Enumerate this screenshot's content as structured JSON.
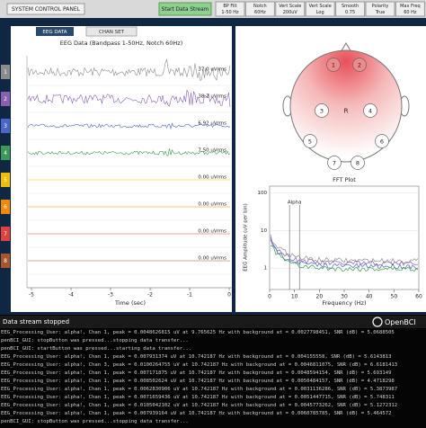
{
  "header": {
    "panel_button": "SYSTEM CONTROL PANEL",
    "stream_button": "Start Data Stream",
    "controls": [
      {
        "label": "BP Filt",
        "value": "1-50 Hz"
      },
      {
        "label": "Notch",
        "value": "60Hz"
      },
      {
        "label": "Vert Scale",
        "value": "200uV"
      },
      {
        "label": "Vert Scale",
        "value": "Log"
      },
      {
        "label": "Smooth",
        "value": "0.75"
      },
      {
        "label": "Polarity",
        "value": "True"
      },
      {
        "label": "Max Freq",
        "value": "60 Hz"
      }
    ]
  },
  "tabs": [
    "EEG DATA",
    "CHAN SET"
  ],
  "eeg": {
    "title": "EEG Data (Bandpass 1-50Hz, Notch 60Hz)",
    "channels": [
      {
        "number": 1,
        "color": "#8c8c8c",
        "rms": "37.0 uVrms"
      },
      {
        "number": 2,
        "color": "#8a5fb3",
        "rms": "38.2 uVrms"
      },
      {
        "number": 3,
        "color": "#4a66c8",
        "rms": "6.92 uVrms"
      },
      {
        "number": 4,
        "color": "#3d9a54",
        "rms": "7.50 uVrms"
      },
      {
        "number": 5,
        "color": "#f0c000",
        "rms": "0.00 uVrms"
      },
      {
        "number": 6,
        "color": "#f08a00",
        "rms": "0.00 uVrms"
      },
      {
        "number": 7,
        "color": "#e04040",
        "rms": "0.00 uVrms"
      },
      {
        "number": 8,
        "color": "#a8552a",
        "rms": "0.00 uVrms"
      }
    ],
    "xlim": [
      -5,
      0
    ],
    "xticks": [
      -5,
      -4,
      -3,
      -2,
      -1,
      0
    ],
    "xlabel": "Time (sec)"
  },
  "headplot": {
    "electrodes": [
      "1",
      "2",
      "3",
      "4",
      "5",
      "6",
      "7",
      "8"
    ],
    "reference": "R"
  },
  "fft": {
    "title": "FFT Plot",
    "xlabel": "Frequency (Hz)",
    "ylabel": "EEG Amplitude (uV per bin)",
    "annotation": "Alpha",
    "xlim": [
      0,
      60
    ],
    "xticks": [
      0,
      10,
      20,
      30,
      40,
      50,
      60
    ],
    "ylim": [
      0.27,
      150
    ],
    "yticks": [
      1,
      10,
      100
    ],
    "log": true
  },
  "status": "Data stream stopped",
  "logo": "OpenBCI",
  "console": [
    "EEG_Processing_User: alpha!, Chan 1, peak = 0.0048626815 uV at 9.765625 Hz with background at = 0.0027798451, SNR (dB) = 5.0688505",
    "penBCI_GUI: stopButton was pressed...stopping data transfer...",
    "penBCI_GUI: startButton was pressed...starting data transfer...",
    "EEG_Processing_User: alpha!, Chan 1, peak = 0.007931374 uV at 10.742187 Hz with background at = 0.004155558, SNR (dB) = 5.6143813",
    "EEG_Processing_User: alpha!, Chan 3, peak = 0.0100264755 uV at 10.742187 Hz with background at = 0.0046811075, SNR (dB) = 6.6181413",
    "EEG_Processing_User: alpha!, Chan 1, peak = 0.007171875 uV at 10.742187 Hz with background at = 0.0048594154, SNR (dB) = 5.693149",
    "EEG_Processing_User: alpha!, Chan 1, peak = 0.008502624 uV at 10.742187 Hz with background at = 0.0050484157, SNR (dB) = 4.4718298",
    "EEG_Processing_User: alpha!, Chan 1, peak = 0.0062830906 uV at 10.742187 Hz with background at = 0.0031136286, SNR (dB) = 5.3873987",
    "EEG_Processing_User: alpha!, Chan 1, peak = 0.0071659436 uV at 10.742187 Hz with background at = 0.0051447715, SNR (dB) = 5.748311",
    "EEG_Processing_User: alpha!, Chan 1, peak = 0.0105042102 uV at 10.742187 Hz with background at = 0.0045773262, SNR (dB) = 5.1272312",
    "EEG_Processing_User: alpha!, Chan 1, peak = 0.007939164 uV at 10.742187 Hz with background at = 0.0060785785, SNR (dB) = 5.464572",
    "penBCI_GUI: stopButton was pressed...stopping data transfer..."
  ]
}
